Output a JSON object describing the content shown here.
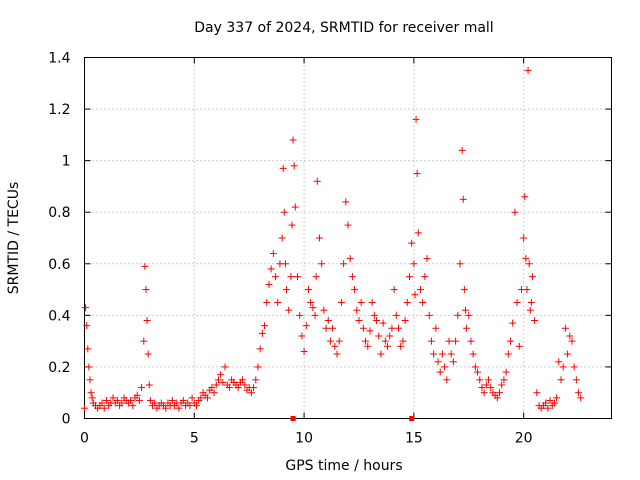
{
  "chart_data": {
    "type": "scatter",
    "title": "Day 337 of 2024, SRMTID for receiver mall",
    "xlabel": "GPS time / hours",
    "ylabel": "SRMTID / TECUs",
    "xlim": [
      0,
      24
    ],
    "ylim": [
      0,
      1.4
    ],
    "x_ticks": [
      0,
      5,
      10,
      15,
      20
    ],
    "y_ticks": [
      0,
      0.2,
      0.4,
      0.6,
      0.8,
      1,
      1.2,
      1.4
    ],
    "x_tick_labels": [
      "0",
      "5",
      "10",
      "15",
      "20"
    ],
    "y_tick_labels": [
      "0",
      "0.2",
      "0.4",
      "0.6",
      "0.8",
      "1",
      "1.2",
      "1.4"
    ],
    "grid": true,
    "marker": "+",
    "series": [
      {
        "name": "SRMTID",
        "color": "#ff0000",
        "x": [
          0.0,
          0.05,
          0.1,
          0.15,
          0.2,
          0.25,
          0.3,
          0.35,
          0.4,
          0.5,
          0.6,
          0.7,
          0.8,
          0.9,
          1.0,
          1.1,
          1.2,
          1.3,
          1.4,
          1.5,
          1.6,
          1.7,
          1.8,
          1.9,
          2.0,
          2.1,
          2.2,
          2.3,
          2.4,
          2.5,
          2.6,
          2.7,
          2.75,
          2.8,
          2.85,
          2.9,
          2.95,
          3.0,
          3.1,
          3.2,
          3.3,
          3.4,
          3.5,
          3.6,
          3.7,
          3.8,
          3.9,
          4.0,
          4.1,
          4.2,
          4.3,
          4.4,
          4.5,
          4.6,
          4.7,
          4.8,
          4.9,
          5.0,
          5.1,
          5.2,
          5.3,
          5.4,
          5.5,
          5.6,
          5.7,
          5.8,
          5.9,
          6.0,
          6.1,
          6.2,
          6.3,
          6.4,
          6.5,
          6.6,
          6.7,
          6.8,
          6.9,
          7.0,
          7.1,
          7.2,
          7.3,
          7.4,
          7.5,
          7.6,
          7.7,
          7.8,
          7.9,
          8.0,
          8.1,
          8.2,
          8.3,
          8.4,
          8.5,
          8.6,
          8.7,
          8.8,
          8.9,
          9.0,
          9.05,
          9.1,
          9.15,
          9.2,
          9.3,
          9.4,
          9.45,
          9.5,
          9.55,
          9.6,
          9.7,
          9.8,
          9.9,
          10.0,
          10.1,
          10.2,
          10.3,
          10.4,
          10.5,
          10.55,
          10.6,
          10.7,
          10.8,
          10.9,
          11.0,
          11.1,
          11.2,
          11.3,
          11.4,
          11.5,
          11.6,
          11.7,
          11.8,
          11.9,
          12.0,
          12.1,
          12.2,
          12.3,
          12.4,
          12.5,
          12.6,
          12.7,
          12.8,
          12.9,
          13.0,
          13.1,
          13.2,
          13.3,
          13.4,
          13.5,
          13.6,
          13.7,
          13.8,
          13.9,
          14.0,
          14.1,
          14.2,
          14.3,
          14.4,
          14.5,
          14.6,
          14.7,
          14.8,
          14.9,
          15.0,
          15.05,
          15.1,
          15.15,
          15.2,
          15.3,
          15.4,
          15.5,
          15.6,
          15.7,
          15.8,
          15.9,
          16.0,
          16.1,
          16.2,
          16.3,
          16.4,
          16.5,
          16.6,
          16.7,
          16.8,
          16.9,
          17.0,
          17.1,
          17.2,
          17.25,
          17.3,
          17.35,
          17.4,
          17.5,
          17.6,
          17.7,
          17.8,
          17.9,
          18.0,
          18.1,
          18.2,
          18.3,
          18.4,
          18.5,
          18.6,
          18.7,
          18.8,
          18.9,
          19.0,
          19.1,
          19.2,
          19.3,
          19.4,
          19.5,
          19.6,
          19.7,
          19.8,
          19.9,
          20.0,
          20.05,
          20.1,
          20.15,
          20.2,
          20.25,
          20.3,
          20.35,
          20.4,
          20.5,
          20.6,
          20.7,
          20.8,
          20.9,
          21.0,
          21.1,
          21.2,
          21.3,
          21.4,
          21.5,
          21.6,
          21.7,
          21.8,
          21.9,
          22.0,
          22.1,
          22.2,
          22.3,
          22.4,
          22.5,
          22.6
        ],
        "y": [
          0.04,
          0.43,
          0.36,
          0.27,
          0.2,
          0.15,
          0.1,
          0.08,
          0.06,
          0.05,
          0.04,
          0.05,
          0.06,
          0.04,
          0.07,
          0.05,
          0.06,
          0.08,
          0.06,
          0.07,
          0.05,
          0.06,
          0.08,
          0.07,
          0.06,
          0.07,
          0.05,
          0.08,
          0.09,
          0.07,
          0.12,
          0.3,
          0.59,
          0.5,
          0.38,
          0.25,
          0.13,
          0.07,
          0.05,
          0.06,
          0.04,
          0.05,
          0.06,
          0.05,
          0.04,
          0.06,
          0.05,
          0.07,
          0.05,
          0.06,
          0.04,
          0.06,
          0.07,
          0.05,
          0.06,
          0.05,
          0.08,
          0.06,
          0.05,
          0.07,
          0.08,
          0.1,
          0.09,
          0.08,
          0.11,
          0.12,
          0.1,
          0.13,
          0.15,
          0.17,
          0.14,
          0.2,
          0.13,
          0.12,
          0.15,
          0.14,
          0.13,
          0.12,
          0.14,
          0.15,
          0.13,
          0.11,
          0.12,
          0.1,
          0.12,
          0.15,
          0.2,
          0.27,
          0.33,
          0.36,
          0.45,
          0.52,
          0.58,
          0.64,
          0.55,
          0.45,
          0.6,
          0.7,
          0.97,
          0.8,
          0.6,
          0.5,
          0.42,
          0.55,
          0.75,
          1.08,
          0.98,
          0.82,
          0.55,
          0.4,
          0.32,
          0.26,
          0.36,
          0.5,
          0.45,
          0.43,
          0.4,
          0.55,
          0.92,
          0.7,
          0.6,
          0.42,
          0.35,
          0.38,
          0.3,
          0.35,
          0.28,
          0.25,
          0.3,
          0.45,
          0.6,
          0.84,
          0.75,
          0.62,
          0.55,
          0.5,
          0.42,
          0.38,
          0.45,
          0.35,
          0.3,
          0.28,
          0.34,
          0.45,
          0.4,
          0.38,
          0.32,
          0.25,
          0.37,
          0.3,
          0.28,
          0.32,
          0.35,
          0.5,
          0.4,
          0.35,
          0.28,
          0.3,
          0.38,
          0.45,
          0.55,
          0.68,
          0.6,
          0.48,
          1.16,
          0.95,
          0.72,
          0.5,
          0.45,
          0.55,
          0.62,
          0.4,
          0.3,
          0.25,
          0.35,
          0.22,
          0.18,
          0.25,
          0.2,
          0.15,
          0.3,
          0.25,
          0.22,
          0.3,
          0.4,
          0.6,
          1.04,
          0.85,
          0.5,
          0.42,
          0.35,
          0.4,
          0.3,
          0.25,
          0.2,
          0.18,
          0.15,
          0.12,
          0.1,
          0.13,
          0.15,
          0.12,
          0.1,
          0.09,
          0.08,
          0.1,
          0.13,
          0.15,
          0.18,
          0.25,
          0.3,
          0.37,
          0.8,
          0.45,
          0.28,
          0.5,
          0.7,
          0.86,
          0.62,
          0.5,
          1.35,
          0.6,
          0.42,
          0.45,
          0.55,
          0.38,
          0.1,
          0.05,
          0.04,
          0.05,
          0.06,
          0.04,
          0.07,
          0.05,
          0.06,
          0.08,
          0.22,
          0.15,
          0.2,
          0.35,
          0.25,
          0.32,
          0.3,
          0.2,
          0.15,
          0.1,
          0.08
        ]
      }
    ],
    "markers_on_axis": [
      9.5,
      14.9
    ]
  }
}
